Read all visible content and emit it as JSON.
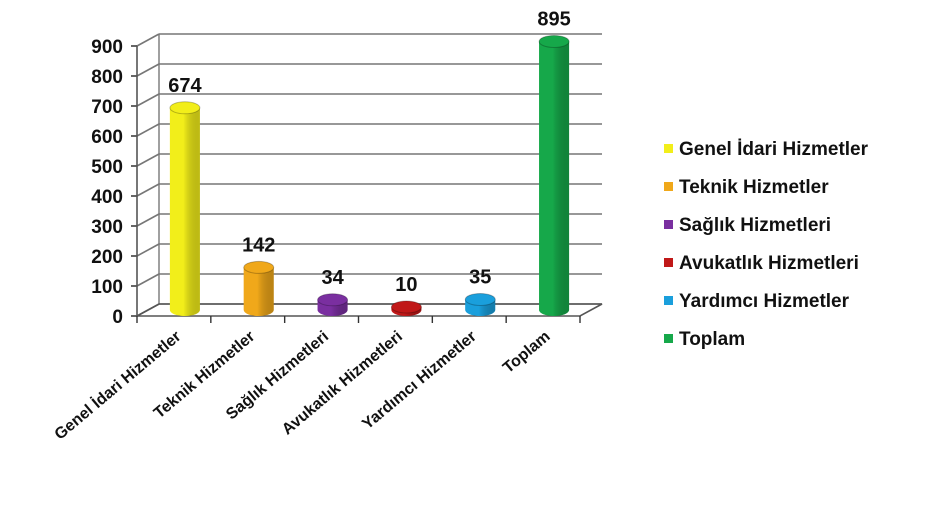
{
  "chart_data": {
    "type": "bar",
    "style": "3d-cylinder",
    "categories": [
      "Genel İdari Hizmetler",
      "Teknik Hizmetler",
      "Sağlık Hizmetleri",
      "Avukatlık Hizmetleri",
      "Yardımcı Hizmetler",
      "Toplam"
    ],
    "values": [
      674,
      142,
      34,
      10,
      35,
      895
    ],
    "data_labels": [
      "674",
      "142",
      "34",
      "10",
      "35",
      "895"
    ],
    "colors": [
      "#f2ee1a",
      "#f0a81a",
      "#7a2fa0",
      "#c01818",
      "#1a9fdc",
      "#16a84a"
    ],
    "ylim": [
      0,
      900
    ],
    "yticks": [
      "0",
      "100",
      "200",
      "300",
      "400",
      "500",
      "600",
      "700",
      "800",
      "900"
    ],
    "grid": true,
    "legend_position": "right",
    "legend": [
      "Genel İdari Hizmetler",
      "Teknik Hizmetler",
      "Sağlık Hizmetleri",
      "Avukatlık Hizmetleri",
      "Yardımcı Hizmetler",
      "Toplam"
    ],
    "title": "",
    "xlabel": "",
    "ylabel": ""
  }
}
